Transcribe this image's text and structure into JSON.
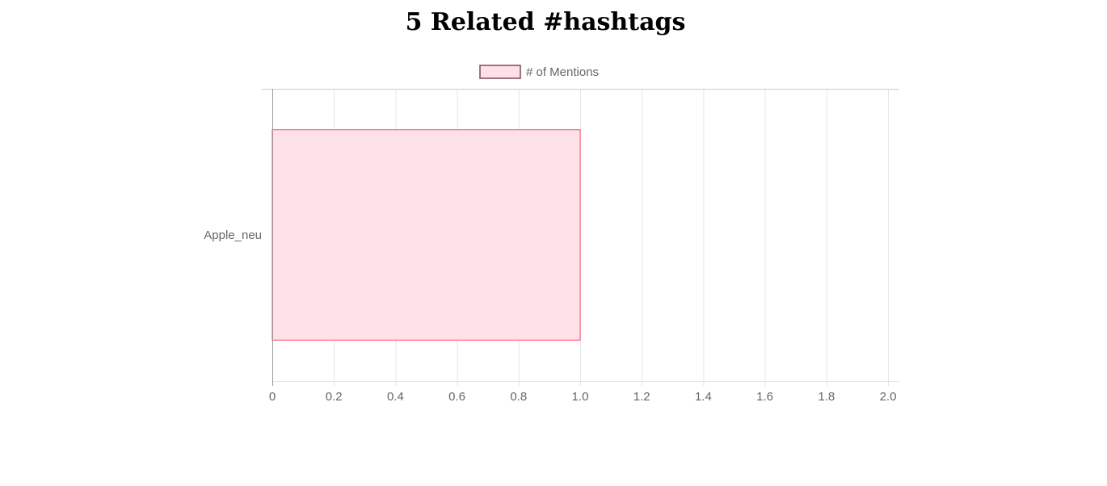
{
  "page": {
    "title": "5 Related #hashtags"
  },
  "chart_data": {
    "type": "bar",
    "orientation": "horizontal",
    "categories": [
      "Apple_neu"
    ],
    "series": [
      {
        "name": "# of Mentions",
        "values": [
          1
        ],
        "fill_color": "#ffe0e6",
        "border_color": "#ff6384"
      }
    ],
    "xlim": [
      0,
      2
    ],
    "x_ticks": [
      "0",
      "0.2",
      "0.4",
      "0.6",
      "0.8",
      "1.0",
      "1.2",
      "1.4",
      "1.6",
      "1.8",
      "2.0"
    ],
    "grid": true,
    "legend_position": "top"
  }
}
